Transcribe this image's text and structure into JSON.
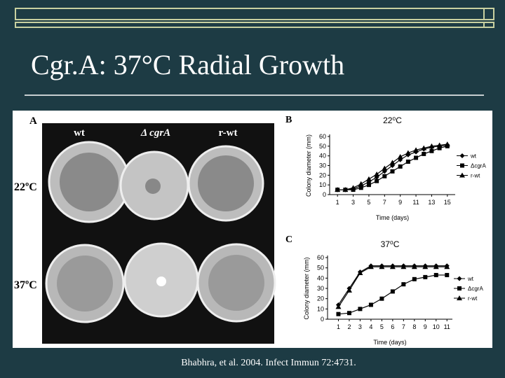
{
  "slide": {
    "title": "Cgr.A: 37°C Radial Growth",
    "citation": "Bhabhra, et al. 2004. Infect Immun 72:4731.",
    "figure": {
      "panel_a": {
        "letter": "A",
        "columns": [
          "wt",
          "Δ cgrA",
          "r-wt"
        ],
        "rows": [
          "22ºC",
          "37ºC"
        ]
      },
      "panels": [
        {
          "letter": "B",
          "type": "line",
          "title": "22⁰C",
          "x_label": "Time (days)",
          "y_label": "Colony diameter (mm)",
          "x": [
            1,
            2,
            3,
            4,
            5,
            6,
            7,
            8,
            9,
            10,
            11,
            12,
            13,
            14,
            15
          ],
          "xlim": [
            0,
            16
          ],
          "xticks": [
            1,
            3,
            5,
            7,
            9,
            11,
            13,
            15
          ],
          "ylim": [
            0,
            60
          ],
          "yticks": [
            0,
            10,
            20,
            30,
            40,
            50,
            60
          ],
          "series": [
            {
              "name": "wt",
              "color": "#000000",
              "marker": "diamond",
              "values": [
                5,
                5,
                6,
                9,
                13,
                18,
                24,
                30,
                36,
                41,
                44,
                47,
                49,
                50,
                51
              ]
            },
            {
              "name": "ΔcgrA",
              "color": "#000000",
              "marker": "square",
              "values": [
                5,
                5,
                5,
                7,
                10,
                14,
                19,
                24,
                29,
                34,
                38,
                42,
                45,
                48,
                50
              ]
            },
            {
              "name": "r-wt",
              "color": "#000000",
              "marker": "triangle",
              "values": [
                5,
                5,
                7,
                11,
                16,
                21,
                27,
                33,
                39,
                43,
                46,
                48,
                50,
                51,
                52
              ]
            }
          ]
        },
        {
          "letter": "C",
          "type": "line",
          "title": "37⁰C",
          "x_label": "Time (days)",
          "y_label": "Colony diameter (mm)",
          "x": [
            1,
            2,
            3,
            4,
            5,
            6,
            7,
            8,
            9,
            10,
            11
          ],
          "xlim": [
            0,
            11.5
          ],
          "xticks": [
            1,
            2,
            3,
            4,
            5,
            6,
            7,
            8,
            9,
            10,
            11
          ],
          "ylim": [
            0,
            60
          ],
          "yticks": [
            0,
            10,
            20,
            30,
            40,
            50,
            60
          ],
          "series": [
            {
              "name": "wt",
              "color": "#000000",
              "marker": "diamond",
              "values": [
                14,
                30,
                46,
                52,
                52,
                52,
                52,
                52,
                52,
                52,
                52
              ]
            },
            {
              "name": "ΔcgrA",
              "color": "#000000",
              "marker": "square",
              "values": [
                5,
                6,
                10,
                14,
                20,
                27,
                34,
                39,
                41,
                43,
                43
              ]
            },
            {
              "name": "r-wt",
              "color": "#000000",
              "marker": "triangle",
              "values": [
                12,
                28,
                45,
                51,
                51,
                51,
                51,
                51,
                51,
                51,
                51
              ]
            }
          ]
        }
      ]
    }
  }
}
